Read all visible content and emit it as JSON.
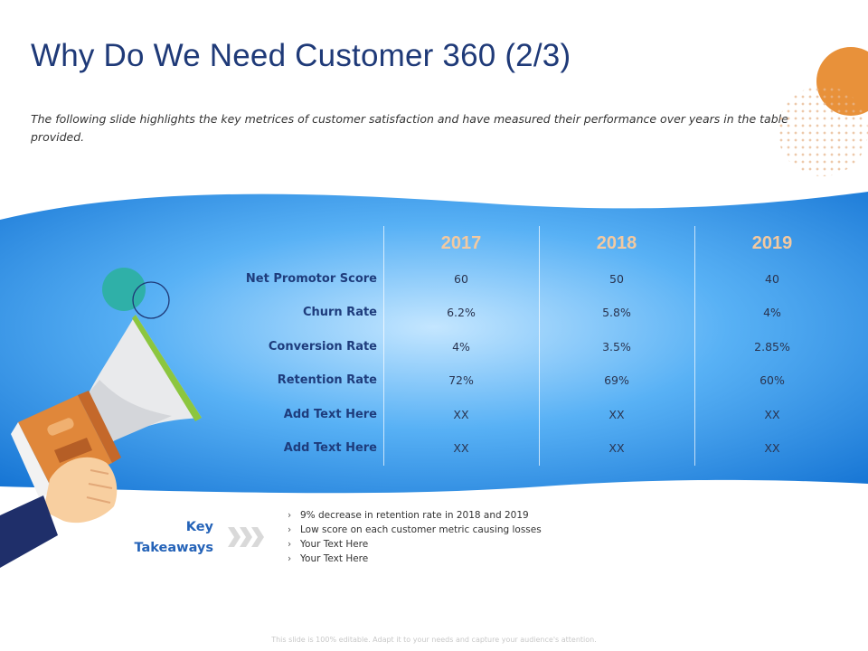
{
  "title": "Why Do We Need Customer 360 (2/3)",
  "subtitle": "The following slide highlights the key metrices of customer satisfaction and have measured their performance over years in the table provided.",
  "table": {
    "years": [
      "2017",
      "2018",
      "2019"
    ],
    "year_color": "#f3c9a0",
    "rows": [
      {
        "label": "Net Promotor Score",
        "values": [
          "60",
          "50",
          "40"
        ]
      },
      {
        "label": "Churn Rate",
        "values": [
          "6.2%",
          "5.8%",
          "4%"
        ]
      },
      {
        "label": "Conversion Rate",
        "values": [
          "4%",
          "3.5%",
          "2.85%"
        ]
      },
      {
        "label": "Retention Rate",
        "values": [
          "72%",
          "69%",
          "60%"
        ]
      },
      {
        "label": "Add Text Here",
        "values": [
          "XX",
          "XX",
          "XX"
        ]
      },
      {
        "label": "Add Text Here",
        "values": [
          "XX",
          "XX",
          "XX"
        ]
      }
    ]
  },
  "key_takeaways": {
    "title_line1": "Key",
    "title_line2": "Takeaways",
    "bullet_glyph": "›",
    "items": [
      "9% decrease in retention rate in 2018 and 2019",
      "Low score on each customer metric causing losses",
      "Your Text Here",
      "Your Text Here"
    ]
  },
  "footer": "This slide is 100% editable. Adapt it to your needs and capture your audience's attention.",
  "colors": {
    "title": "#1f3a78",
    "accent_orange": "#e8913a",
    "banner_blue": "#1a78d6",
    "banner_light": "#bfe3ff",
    "label_navy": "#1e3c7c",
    "key_blue": "#2563b8"
  },
  "icons": {
    "megaphone": "megaphone-icon",
    "chevrons": "triple-chevron-right-icon"
  }
}
